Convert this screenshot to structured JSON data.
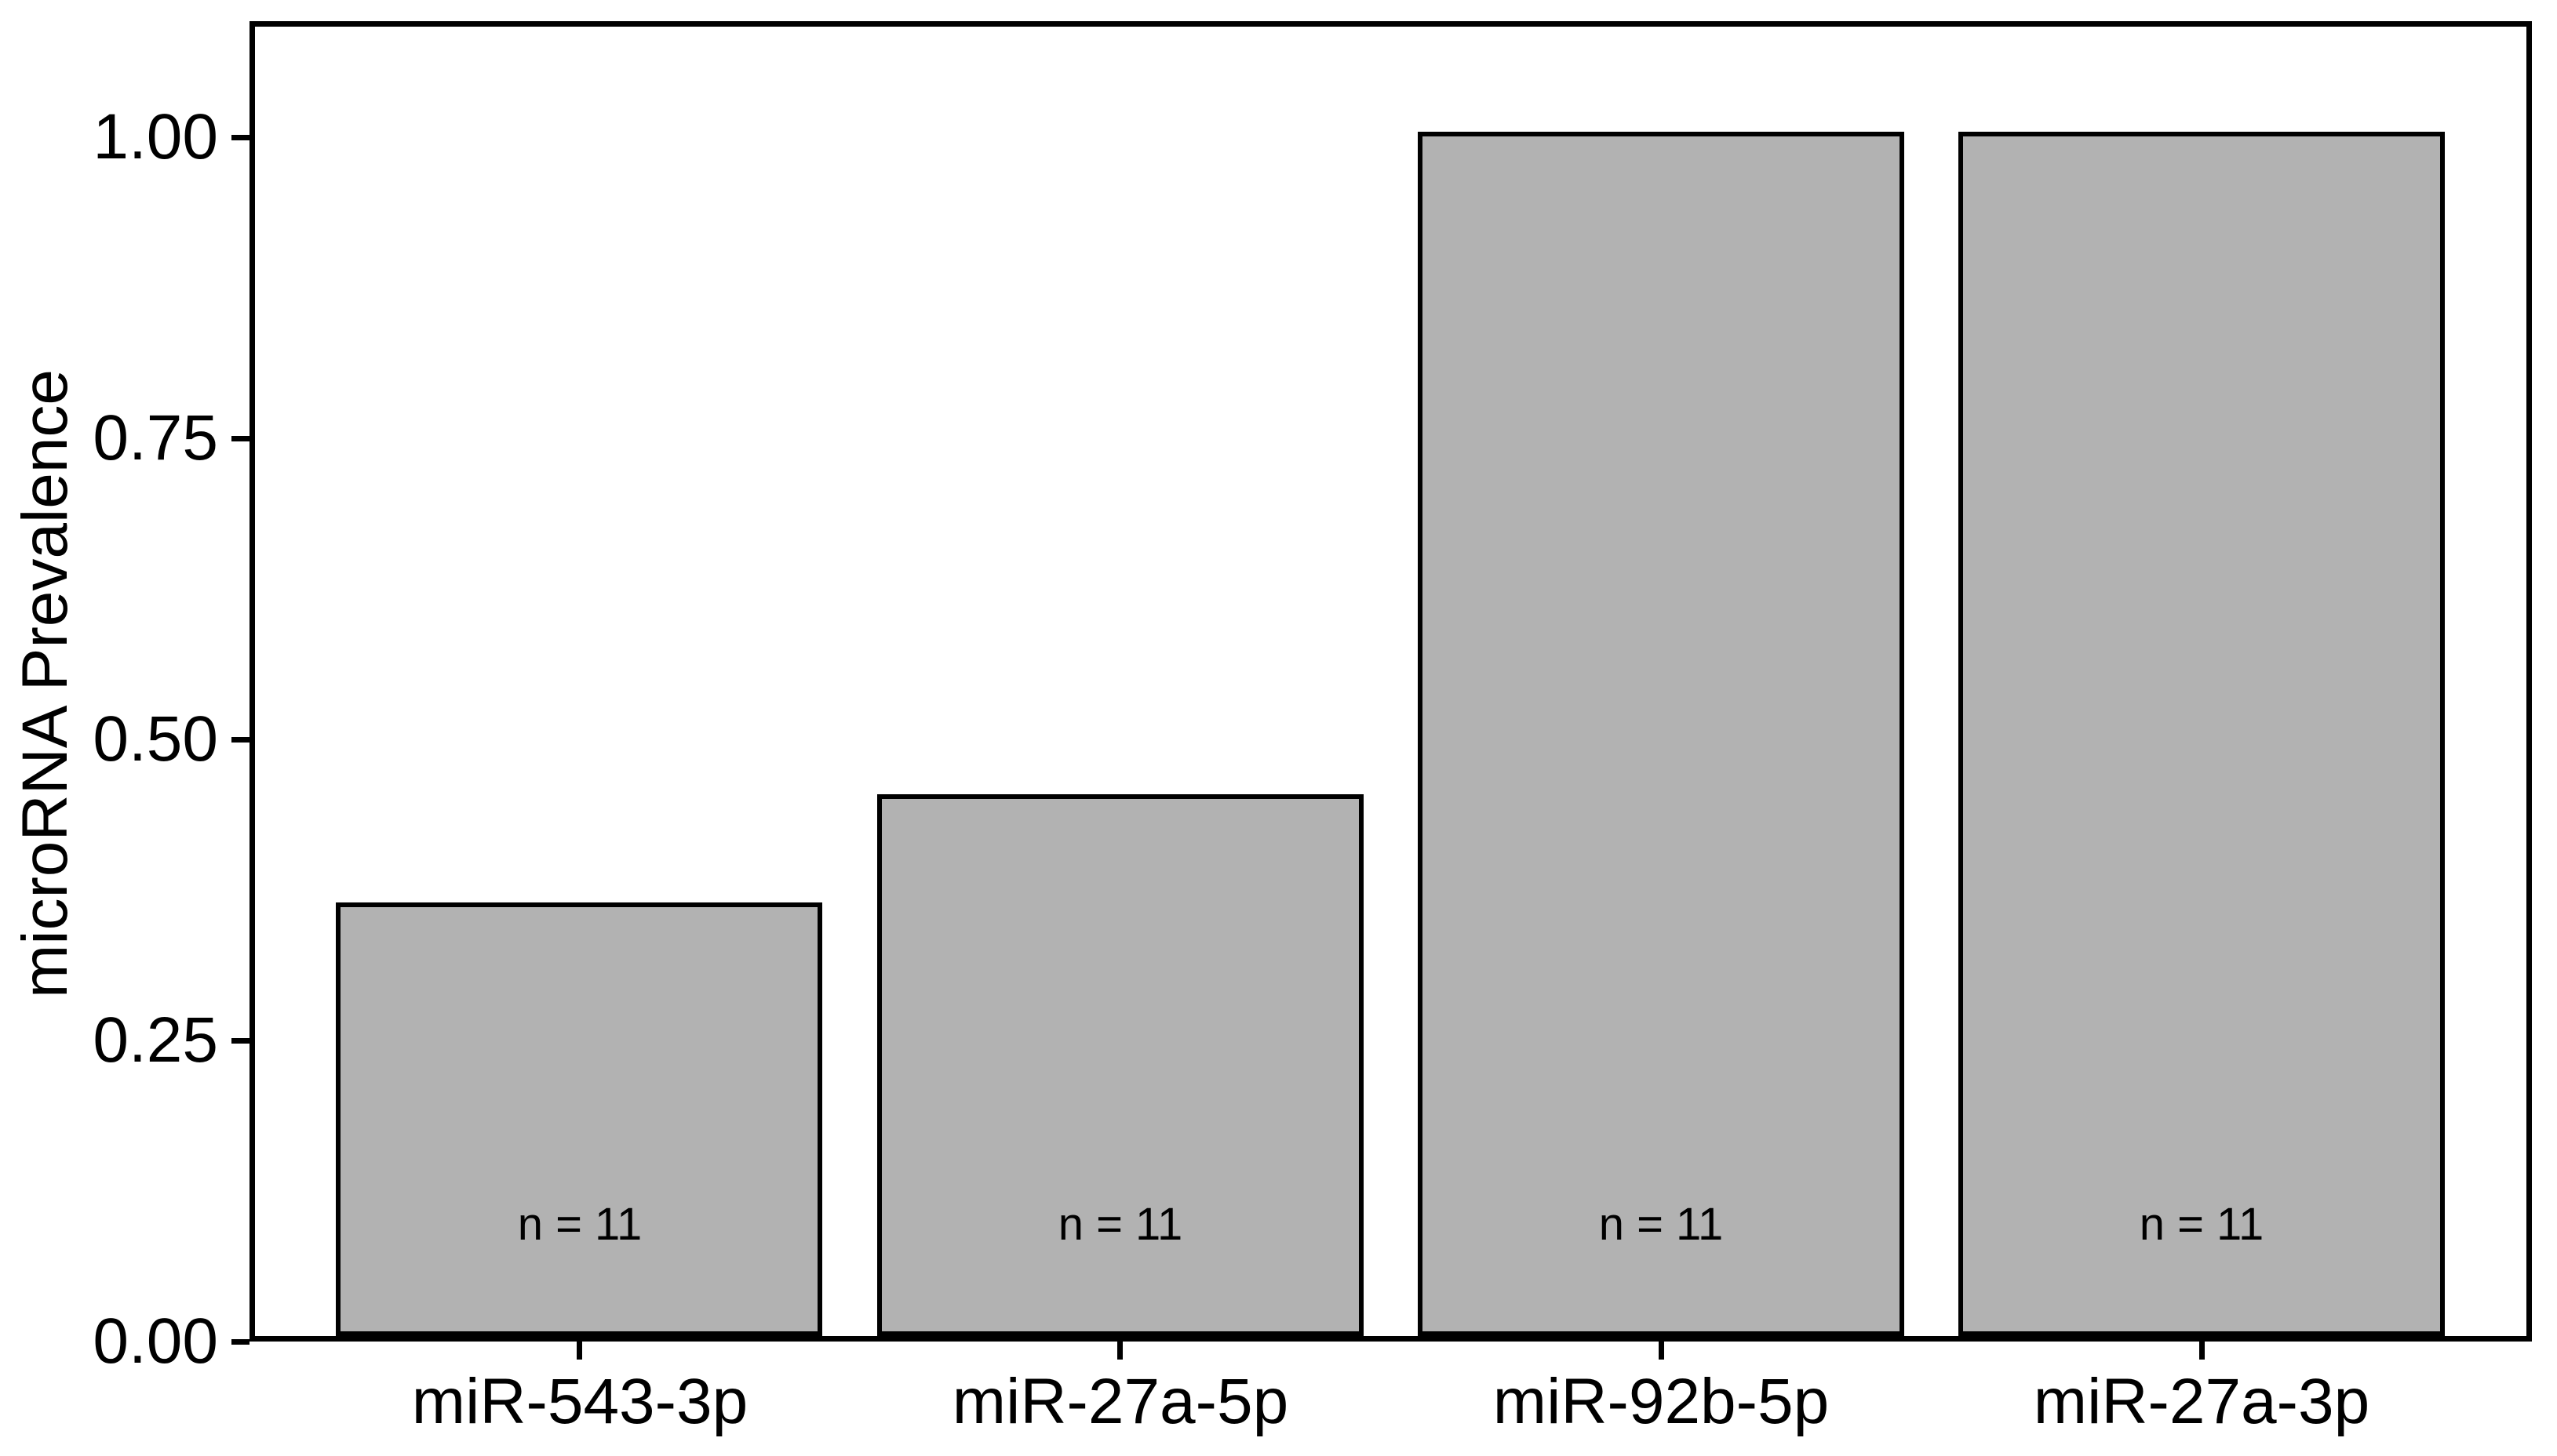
{
  "chart_data": {
    "type": "bar",
    "title": "",
    "xlabel": "",
    "ylabel": "microRNA Prevalence",
    "categories": [
      "miR-543-3p",
      "miR-27a-5p",
      "miR-92b-5p",
      "miR-27a-3p"
    ],
    "values": [
      0.36,
      0.45,
      1.0,
      1.0
    ],
    "bar_labels": [
      "n = 11",
      "n = 11",
      "n = 11",
      "n = 11"
    ],
    "y_ticks": [
      "0.00",
      "0.25",
      "0.50",
      "0.75",
      "1.00"
    ],
    "y_tick_values": [
      0,
      0.25,
      0.5,
      0.75,
      1.0
    ],
    "ylim": [
      0,
      1.09
    ],
    "grid": "off",
    "legend": "none",
    "colors": {
      "bar_fill": "#b2b2b2",
      "bar_stroke": "#000000",
      "axis": "#000000",
      "text": "#000000",
      "background": "#ffffff"
    }
  }
}
